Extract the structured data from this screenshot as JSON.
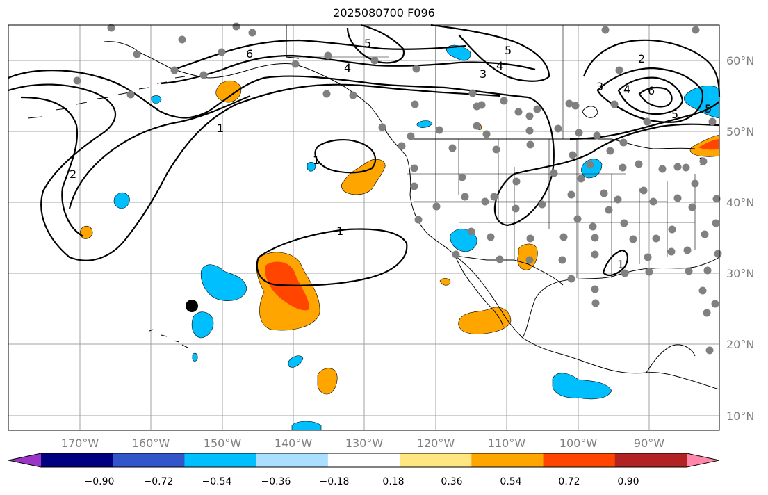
{
  "title": "2025080700 F096",
  "map": {
    "lon_labels": [
      "170°W",
      "160°W",
      "150°W",
      "140°W",
      "130°W",
      "120°W",
      "110°W",
      "100°W",
      "90°W"
    ],
    "lat_labels": [
      "60°N",
      "50°N",
      "40°N",
      "30°N",
      "20°N",
      "10°N"
    ],
    "contour_labels": [
      "5",
      "5",
      "4",
      "4",
      "3",
      "6",
      "1",
      "1",
      "1",
      "1",
      "2",
      "2",
      "3",
      "4",
      "6",
      "5",
      "5",
      "1"
    ]
  },
  "colorbar": {
    "ticks": [
      "−0.90",
      "−0.72",
      "−0.54",
      "−0.36",
      "−0.18",
      "0.18",
      "0.36",
      "0.54",
      "0.72",
      "0.90"
    ],
    "colors": [
      "#9a35c8",
      "#000080",
      "#3355cc",
      "#00bfff",
      "#aadfff",
      "#ffffff",
      "#ffe680",
      "#ffa500",
      "#ff4500",
      "#b22222",
      "#ff88aa"
    ]
  },
  "colors": {
    "positive_orange": "#ffa500",
    "positive_red": "#ff4500",
    "negative_blue": "#00bfff",
    "station_dot": "#808080",
    "grid": "#a0a0a0"
  }
}
